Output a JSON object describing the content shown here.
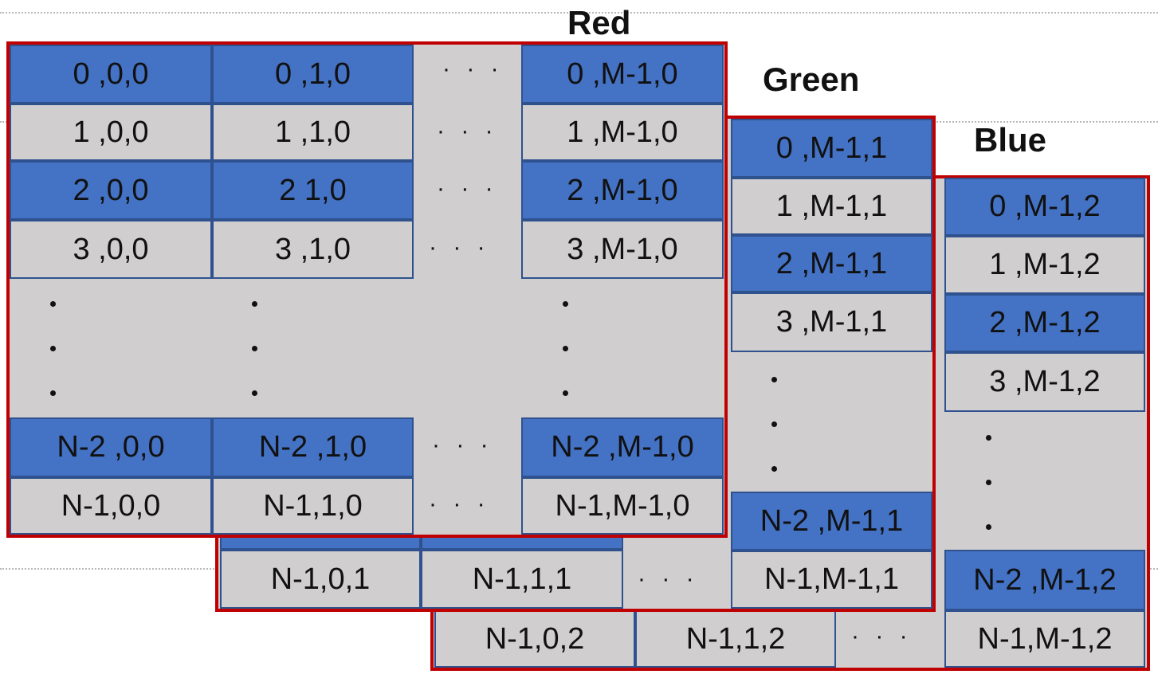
{
  "labels": {
    "red": "Red",
    "green": "Green",
    "blue": "Blue"
  },
  "ellipsis": "· · ·",
  "red": {
    "r0": [
      "0 ,0,0",
      "0 ,1,0",
      "0 ,M-1,0"
    ],
    "r1": [
      "1 ,0,0",
      "1 ,1,0",
      "1 ,M-1,0"
    ],
    "r2": [
      "2 ,0,0",
      "2 1,0",
      "2 ,M-1,0"
    ],
    "r3": [
      "3 ,0,0",
      "3 ,1,0",
      "3 ,M-1,0"
    ],
    "rn2": [
      "N-2 ,0,0",
      "N-2 ,1,0",
      "N-2 ,M-1,0"
    ],
    "rn1": [
      "N-1,0,0",
      "N-1,1,0",
      "N-1,M-1,0"
    ]
  },
  "green": {
    "col": [
      "0 ,M-1,1",
      "1 ,M-1,1",
      "2 ,M-1,1",
      "3 ,M-1,1",
      "N-2 ,M-1,1"
    ],
    "bottom": [
      "N-1,0,1",
      "N-1,1,1",
      "N-1,M-1,1"
    ]
  },
  "blue": {
    "col": [
      "0 ,M-1,2",
      "1 ,M-1,2",
      "2 ,M-1,2",
      "3 ,M-1,2",
      "N-2 ,M-1,2"
    ],
    "bottom": [
      "N-1,0,2",
      "N-1,1,2",
      "N-1,M-1,2"
    ]
  },
  "colors": {
    "cell_blue": "#4472c4",
    "cell_gray": "#d0cece",
    "border_red": "#c00000",
    "cell_border": "#2f528f"
  }
}
